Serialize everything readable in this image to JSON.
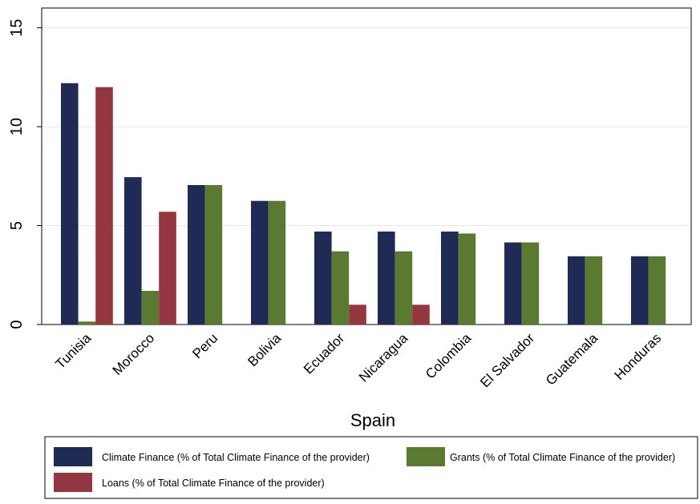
{
  "chart_data": {
    "type": "bar",
    "xlabel": "Spain",
    "categories": [
      "Tunisia",
      "Morocco",
      "Peru",
      "Bolivia",
      "Ecuador",
      "Nicaragua",
      "Colombia",
      "El Salvador",
      "Guatemala",
      "Honduras"
    ],
    "series": [
      {
        "name": "Climate Finance (% of Total Climate Finance of the provider)",
        "color": "#1f2a55",
        "values": [
          12.2,
          7.45,
          7.05,
          6.25,
          4.7,
          4.7,
          4.7,
          4.15,
          3.45,
          3.45
        ]
      },
      {
        "name": "Grants (% of Total Climate Finance of the provider)",
        "color": "#5a7a32",
        "values": [
          0.15,
          1.7,
          7.05,
          6.25,
          3.7,
          3.7,
          4.6,
          4.15,
          3.45,
          3.45
        ]
      },
      {
        "name": "Loans (% of Total Climate Finance of the provider)",
        "color": "#943640",
        "values": [
          12.0,
          5.7,
          0,
          0,
          1.0,
          1.0,
          0,
          0,
          0,
          0
        ]
      }
    ],
    "ylim": [
      0,
      16
    ],
    "yticks": [
      0,
      5,
      10,
      15
    ],
    "grid": true
  }
}
